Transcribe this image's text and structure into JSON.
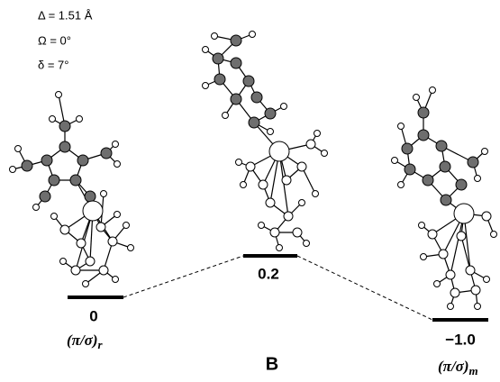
{
  "annotations": [
    "Δ = 1.51 Å",
    "Ω = 0°",
    "δ = 7°"
  ],
  "levels": [
    {
      "value": "0",
      "label": "(π/σ)",
      "sub": "r"
    },
    {
      "value": "0.2"
    },
    {
      "value": "−1.0",
      "label": "(π/σ)",
      "sub": "m"
    }
  ],
  "panel": "B"
}
